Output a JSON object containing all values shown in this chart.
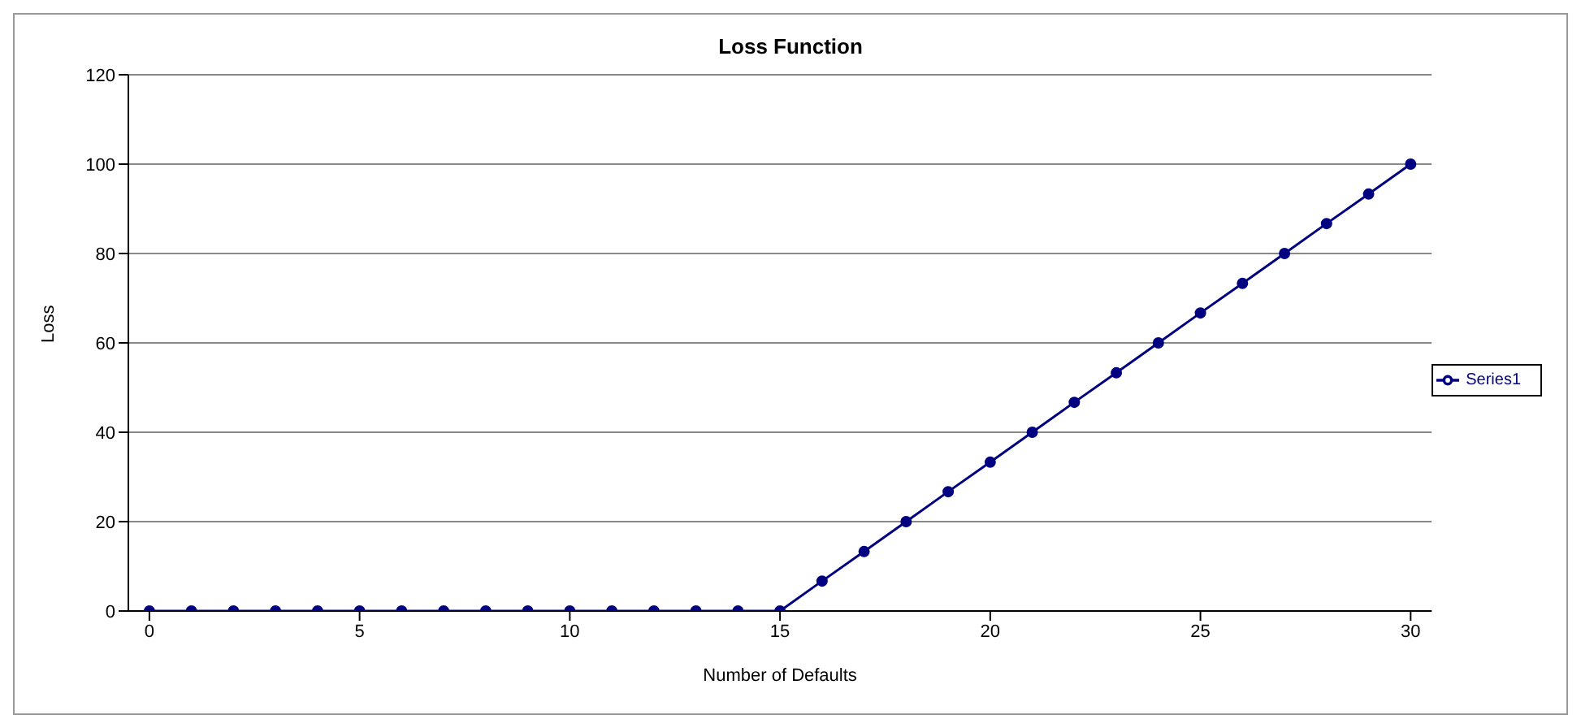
{
  "chart_data": {
    "type": "line",
    "title": "Loss Function",
    "xlabel": "Number of Defaults",
    "ylabel": "Loss",
    "x": [
      0,
      1,
      2,
      3,
      4,
      5,
      6,
      7,
      8,
      9,
      10,
      11,
      12,
      13,
      14,
      15,
      16,
      17,
      18,
      19,
      20,
      21,
      22,
      23,
      24,
      25,
      26,
      27,
      28,
      29,
      30
    ],
    "series": [
      {
        "name": "Series1",
        "color": "#000080",
        "values": [
          0,
          0,
          0,
          0,
          0,
          0,
          0,
          0,
          0,
          0,
          0,
          0,
          0,
          0,
          0,
          0,
          6.7,
          13.3,
          20,
          26.7,
          33.3,
          40,
          46.7,
          53.3,
          60,
          66.7,
          73.3,
          80,
          86.7,
          93.3,
          100
        ]
      }
    ],
    "xlim": [
      -0.5,
      30.5
    ],
    "xticks": [
      0,
      5,
      10,
      15,
      20,
      25,
      30
    ],
    "ylim": [
      0,
      120
    ],
    "yticks": [
      0,
      20,
      40,
      60,
      80,
      100,
      120
    ],
    "grid": "y",
    "legend": "right",
    "marker": "circle",
    "line_style": "solid"
  }
}
